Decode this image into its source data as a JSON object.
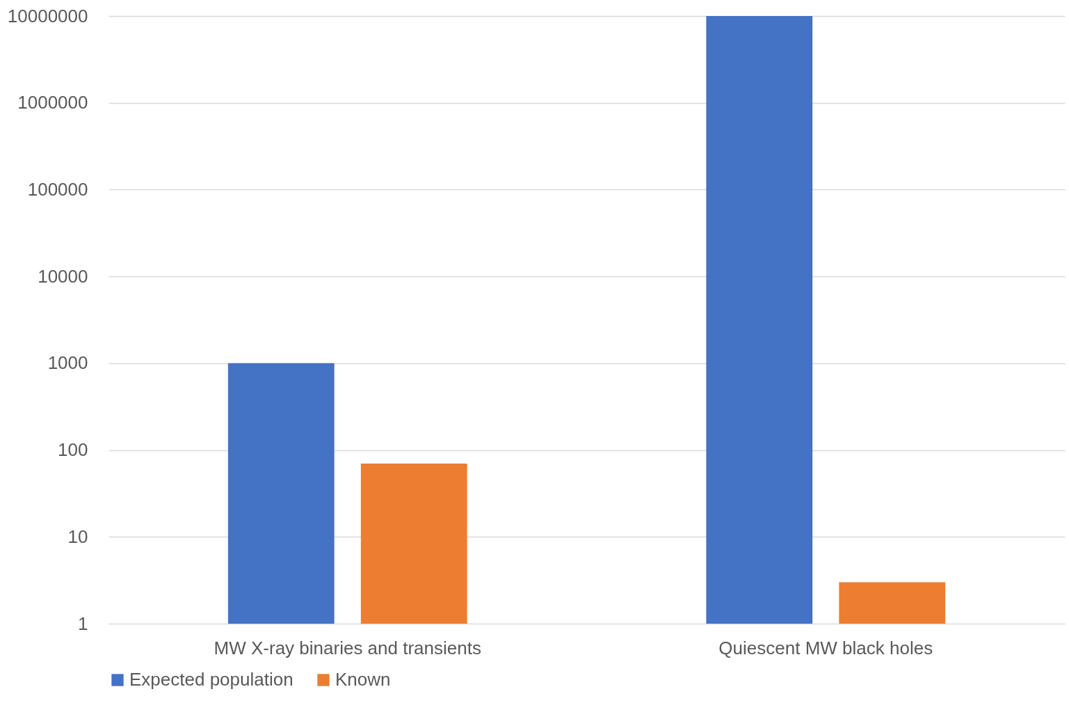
{
  "chart_data": {
    "type": "bar",
    "categories": [
      "MW X-ray binaries and transients",
      "Quiescent MW black holes"
    ],
    "series": [
      {
        "name": "Expected population",
        "color": "#4472c4",
        "values": [
          1000,
          10000000
        ]
      },
      {
        "name": "Known",
        "color": "#ed7d31",
        "values": [
          70,
          3
        ]
      }
    ],
    "log": true,
    "ylim": [
      1,
      10000000
    ],
    "yticks": [
      1,
      10,
      100,
      1000,
      10000,
      100000,
      1000000,
      10000000
    ],
    "grid": "y",
    "legend": "bottom"
  }
}
